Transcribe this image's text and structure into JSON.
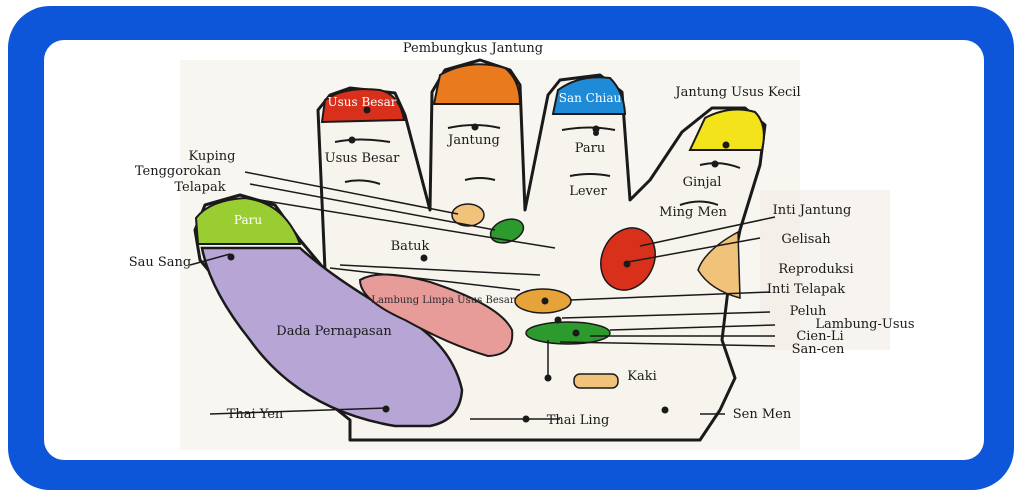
{
  "colors": {
    "frame": "#0d55d9",
    "red": "#d9301c",
    "orange": "#e97a1e",
    "blue": "#1f8bd6",
    "yellow": "#f2e31a",
    "lime": "#9acd32",
    "purple": "#b7a5d6",
    "pink": "#e89c9a",
    "darkgreen": "#2d9a2d",
    "tan": "#f0c27a",
    "gold": "#e6a33a"
  },
  "fingertips": {
    "index": "Usus Besar",
    "middle_top": "Pembungkus Jantung",
    "ring": "San Chiau",
    "little_top": "Jantung Usus Kecil"
  },
  "labels": {
    "paru_thumb": "Paru",
    "usus_besar": "Usus Besar",
    "jantung": "Jantung",
    "paru_ring": "Paru",
    "lever": "Lever",
    "ginjal": "Ginjal",
    "ming_men": "Ming Men",
    "kuping": "Kuping",
    "tenggorokan": "Tenggorokan",
    "telapak": "Telapak",
    "sau_sang": "Sau Sang",
    "batuk": "Batuk",
    "inti_jantung": "Inti Jantung",
    "gelisah": "Gelisah",
    "reproduksi": "Reproduksi",
    "inti_telapak": "Inti Telapak",
    "peluh": "Peluh",
    "lambung_usus": "Lambung-Usus",
    "cien_li": "Cien-Li",
    "san_cen": "San-cen",
    "lambung_limpa": "Lambung Limpa Usus Besar",
    "dada": "Dada Pernapasan",
    "kaki": "Kaki",
    "thai_yen": "Thai Yen",
    "thai_ling": "Thai Ling",
    "sen_men": "Sen Men"
  }
}
